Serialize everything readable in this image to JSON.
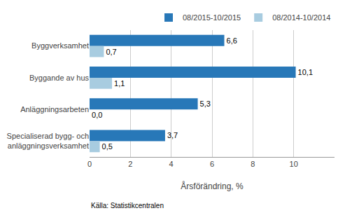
{
  "chart_data": {
    "type": "bar",
    "orientation": "horizontal",
    "categories": [
      "Byggverksamhet",
      "Byggande av hus",
      "Anläggningsarbeten",
      "Specialiserad bygg- och\nanläggningsverksamhet"
    ],
    "series": [
      {
        "name": "08/2015-10/2015",
        "color": "#2878b8",
        "values": [
          6.6,
          10.1,
          5.3,
          3.7
        ],
        "value_labels": [
          "6,6",
          "10,1",
          "5,3",
          "3,7"
        ]
      },
      {
        "name": "08/2014-10/2014",
        "color": "#a8cce0",
        "values": [
          0.7,
          1.1,
          0.0,
          0.5
        ],
        "value_labels": [
          "0,7",
          "1,1",
          "0,0",
          "0,5"
        ]
      }
    ],
    "x_label": "Årsförändring, %",
    "xlim": [
      0,
      12.0
    ],
    "xticks": [
      0,
      2,
      4,
      6,
      8,
      10
    ],
    "grid": true,
    "legend": "upper right",
    "data_labels": true,
    "annotations": [
      "Källa: Statistikcentralen"
    ]
  }
}
